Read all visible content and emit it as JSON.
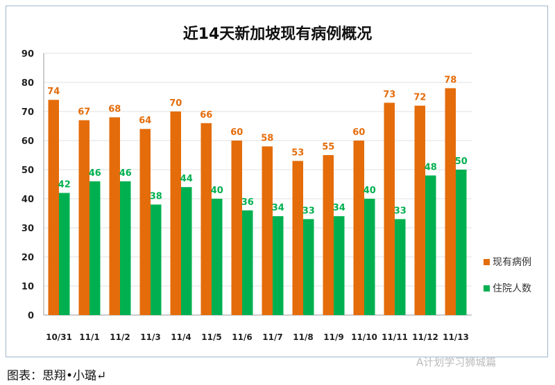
{
  "chart_data": {
    "type": "bar",
    "title": "近14天新加坡现有病例概况",
    "categories": [
      "10/31",
      "11/1",
      "11/2",
      "11/3",
      "11/4",
      "11/5",
      "11/6",
      "11/7",
      "11/8",
      "11/9",
      "11/10",
      "11/11",
      "11/12",
      "11/13"
    ],
    "series": [
      {
        "name": "现有病例",
        "color": "#E46C0A",
        "values": [
          74,
          67,
          68,
          64,
          70,
          66,
          60,
          58,
          53,
          55,
          60,
          73,
          72,
          78
        ]
      },
      {
        "name": "住院人数",
        "color": "#00B050",
        "values": [
          42,
          46,
          46,
          38,
          44,
          40,
          36,
          34,
          33,
          34,
          40,
          33,
          48,
          50
        ]
      }
    ],
    "ylim": [
      0,
      90
    ],
    "yticks": [
      0,
      10,
      20,
      30,
      40,
      50,
      60,
      70,
      80,
      90
    ],
    "grid": true,
    "legend": "right"
  },
  "caption": "图表：思翔•小璐↵",
  "watermark": "A计划学习狮城篇"
}
